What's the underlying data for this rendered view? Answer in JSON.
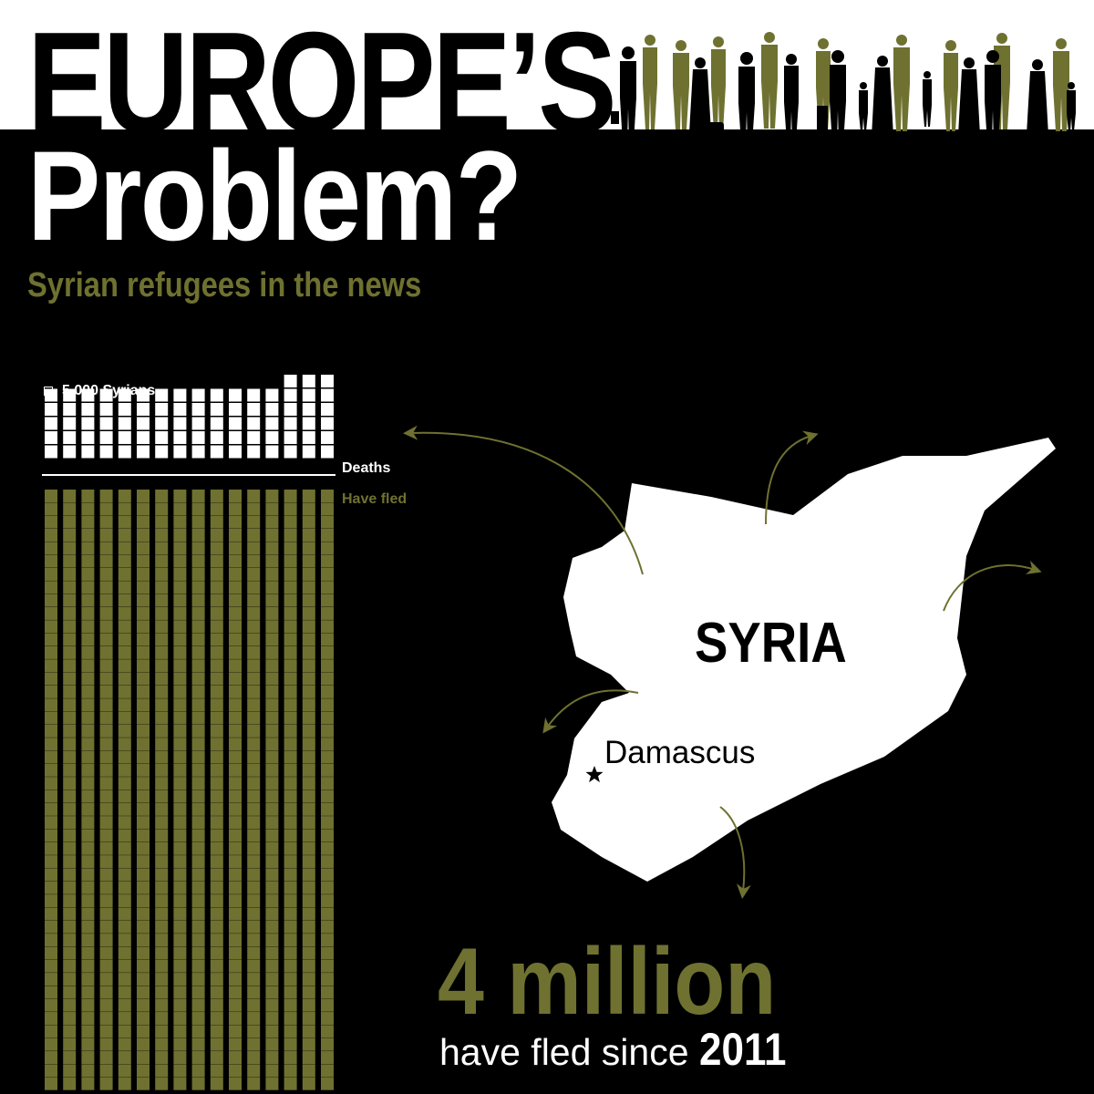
{
  "title": {
    "line1": "EUROPE’S",
    "line2": "Problem?"
  },
  "subtitle": "Syrian refugees in the news",
  "legend": {
    "unit_label": "5,000 Syrians"
  },
  "waffle": {
    "deaths": {
      "label": "Deaths",
      "rows": 5,
      "cols": 16,
      "extra_rows": 1,
      "color": "#ffffff"
    },
    "fled": {
      "label": "Have fled",
      "rows": 46,
      "cols": 16,
      "color": "#6f7130"
    }
  },
  "map": {
    "country_label": "SYRIA",
    "capital_label": "Damascus"
  },
  "headline": {
    "number": "4 million",
    "sentence": "have fled since",
    "year": "2011"
  },
  "colors": {
    "olive": "#6f7130",
    "background": "#000000",
    "white": "#ffffff"
  }
}
